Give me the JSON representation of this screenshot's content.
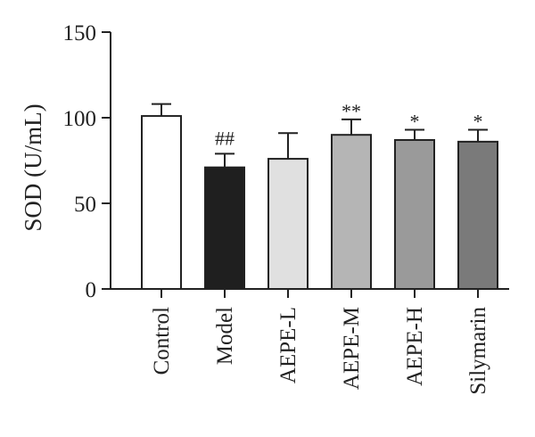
{
  "chart_data": {
    "type": "bar",
    "ylabel": "SOD (U/mL)",
    "xlabel": "",
    "ylim": [
      0,
      150
    ],
    "yticks": [
      0,
      50,
      100,
      150
    ],
    "categories": [
      "Control",
      "Model",
      "AEPE-L",
      "AEPE-M",
      "AEPE-H",
      "Silymarin"
    ],
    "values": [
      101,
      71,
      76,
      90,
      87,
      86
    ],
    "errors": [
      7,
      8,
      15,
      9,
      6,
      7
    ],
    "annotations": [
      "",
      "##",
      "",
      "**",
      "*",
      "*"
    ],
    "colors": [
      "#ffffff",
      "#1f1f1f",
      "#e0e0e0",
      "#b5b5b5",
      "#9a9a9a",
      "#7a7a7a"
    ],
    "grid": false,
    "legend": "none"
  }
}
